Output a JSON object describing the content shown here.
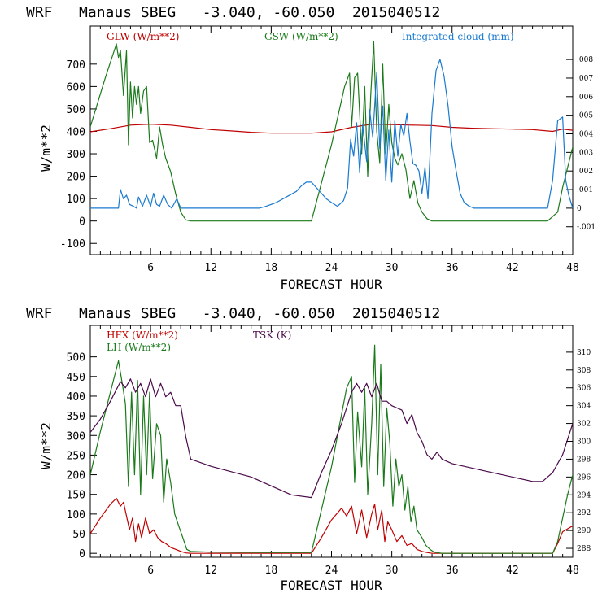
{
  "chart_data": [
    {
      "type": "line",
      "title": "WRF   Manaus SBEG   -3.040, -60.050  2015040512",
      "xlabel": "FORECAST HOUR",
      "ylabel": "W/m**2",
      "xlim": [
        0,
        48
      ],
      "ylim": [
        -150,
        870
      ],
      "y2lim": [
        -0.0025,
        0.0098
      ],
      "xticks": [
        "6",
        "12",
        "18",
        "24",
        "30",
        "36",
        "42",
        "48"
      ],
      "yticks": [
        "700",
        "600",
        "500",
        "400",
        "300",
        "200",
        "100",
        "0",
        "-100"
      ],
      "y2ticks": [
        ".008",
        ".007",
        ".006",
        ".005",
        ".004",
        ".003",
        ".002",
        ".001",
        "0",
        "-.001"
      ],
      "series": [
        {
          "name": "GLW (W/m**2)",
          "color": "#c00000",
          "axis": "left",
          "x": [
            0,
            2,
            4,
            6,
            8,
            10,
            12,
            14,
            16,
            18,
            20,
            22,
            24,
            26,
            28,
            30,
            32,
            34,
            36,
            38,
            40,
            42,
            44,
            46,
            47,
            48
          ],
          "y": [
            398,
            412,
            428,
            432,
            428,
            418,
            408,
            402,
            396,
            392,
            392,
            392,
            398,
            418,
            432,
            430,
            428,
            426,
            418,
            414,
            412,
            410,
            408,
            400,
            410,
            405
          ]
        },
        {
          "name": "GSW (W/m**2)",
          "color": "#1a7a1a",
          "axis": "left",
          "x": [
            0,
            1.5,
            2.6,
            2.8,
            3,
            3.3,
            3.6,
            3.8,
            4,
            4.2,
            4.4,
            4.6,
            4.8,
            5,
            5.3,
            5.6,
            5.9,
            6.2,
            6.6,
            6.9,
            7.2,
            7.5,
            8,
            8.5,
            9,
            9.5,
            10,
            22,
            24,
            25.3,
            25.8,
            26,
            26.3,
            26.6,
            27,
            27.3,
            27.6,
            27.9,
            28.2,
            28.5,
            28.8,
            29.1,
            29.4,
            29.7,
            30,
            30.3,
            30.6,
            31,
            31.4,
            31.8,
            32.2,
            32.6,
            33,
            33.5,
            34,
            45.5,
            46.5,
            47,
            48
          ],
          "y": [
            420,
            640,
            790,
            730,
            760,
            560,
            760,
            340,
            620,
            460,
            600,
            520,
            600,
            480,
            580,
            600,
            350,
            360,
            280,
            420,
            340,
            280,
            220,
            120,
            40,
            5,
            0,
            0,
            340,
            600,
            660,
            420,
            640,
            660,
            300,
            600,
            200,
            560,
            800,
            400,
            260,
            700,
            300,
            520,
            350,
            280,
            250,
            300,
            230,
            100,
            180,
            80,
            40,
            10,
            0,
            0,
            40,
            150,
            330
          ]
        },
        {
          "name": "Integrated cloud (mm)",
          "color": "#1a7ad0",
          "axis": "right",
          "x": [
            0,
            2.8,
            3,
            3.3,
            3.6,
            3.9,
            4.3,
            4.6,
            4.8,
            5.2,
            5.6,
            6,
            6.3,
            6.6,
            6.9,
            7.3,
            7.7,
            8.1,
            8.6,
            9,
            10,
            16.8,
            17.5,
            18.5,
            19.5,
            20.5,
            21,
            21.5,
            22,
            22.5,
            23,
            23.5,
            24,
            24.6,
            25.2,
            25.6,
            25.9,
            26.2,
            26.5,
            26.8,
            27.1,
            27.5,
            27.8,
            28.1,
            28.5,
            28.8,
            29.1,
            29.4,
            29.7,
            30,
            30.3,
            30.6,
            30.9,
            31.2,
            31.5,
            31.8,
            32.1,
            32.4,
            32.7,
            33,
            33.3,
            33.6,
            34,
            34.4,
            34.8,
            35.2,
            35.6,
            36,
            36.4,
            36.8,
            37.2,
            37.7,
            38.2,
            45.5,
            46,
            46.5,
            47,
            47.3,
            47.6,
            48
          ],
          "y": [
            0,
            0,
            0.001,
            0.0005,
            0.0007,
            0.0002,
            0.0001,
            0,
            0.0006,
            0.0001,
            0.0007,
            0.0001,
            0.0008,
            0.0002,
            0.0001,
            0.0007,
            0.0002,
            0,
            0.0005,
            0,
            0,
            0,
            0.0001,
            0.0003,
            0.0006,
            0.0009,
            0.0012,
            0.0014,
            0.0014,
            0.0011,
            0.0008,
            0.0005,
            0.0003,
            0.0001,
            0.0004,
            0.0011,
            0.0037,
            0.0028,
            0.0046,
            0.0019,
            0.0045,
            0.0025,
            0.0053,
            0.0038,
            0.0073,
            0.0032,
            0.0055,
            0.0015,
            0.0042,
            0.0014,
            0.0047,
            0.0028,
            0.0045,
            0.0039,
            0.0051,
            0.0036,
            0.0024,
            0.0023,
            0.002,
            0.0008,
            0.0022,
            0.0005,
            0.0051,
            0.0074,
            0.008,
            0.0071,
            0.0055,
            0.0033,
            0.002,
            0.0008,
            0.0003,
            0.0001,
            0,
            0,
            0.0015,
            0.0047,
            0.0049,
            0.0015,
            0.0007,
            0
          ]
        }
      ]
    },
    {
      "type": "line",
      "title": "WRF   Manaus SBEG   -3.040, -60.050  2015040512",
      "xlabel": "FORECAST HOUR",
      "ylabel": "W/m**2",
      "xlim": [
        0,
        48
      ],
      "ylim": [
        -10,
        580
      ],
      "y2lim": [
        287,
        313
      ],
      "xticks": [
        "6",
        "12",
        "18",
        "24",
        "30",
        "36",
        "42",
        "48"
      ],
      "yticks": [
        "500",
        "450",
        "400",
        "350",
        "300",
        "250",
        "200",
        "150",
        "100",
        "50",
        "0"
      ],
      "y2ticks": [
        "310",
        "308",
        "306",
        "304",
        "302",
        "300",
        "298",
        "296",
        "294",
        "292",
        "290",
        "288"
      ],
      "series": [
        {
          "name": "HFX (W/m**2)",
          "color": "#c00000",
          "axis": "left",
          "x": [
            0,
            1,
            2,
            2.6,
            3,
            3.3,
            3.6,
            3.9,
            4.2,
            4.5,
            4.8,
            5.1,
            5.5,
            5.9,
            6.3,
            6.7,
            7.1,
            7.5,
            8,
            8.5,
            9,
            9.5,
            10,
            22,
            23,
            24,
            25,
            25.5,
            26,
            26.5,
            27,
            27.5,
            28,
            28.3,
            28.6,
            29,
            29.3,
            29.6,
            30,
            30.5,
            31,
            31.5,
            32,
            32.5,
            33,
            33.5,
            34,
            46,
            46.5,
            47,
            48
          ],
          "y": [
            50,
            90,
            125,
            140,
            120,
            130,
            95,
            60,
            90,
            30,
            75,
            40,
            90,
            50,
            60,
            40,
            30,
            25,
            15,
            10,
            5,
            1,
            0,
            0,
            40,
            85,
            115,
            95,
            120,
            50,
            110,
            40,
            100,
            125,
            60,
            110,
            30,
            80,
            60,
            30,
            45,
            20,
            25,
            10,
            5,
            2,
            0,
            0,
            25,
            55,
            70
          ]
        },
        {
          "name": "LH (W/m**2)",
          "color": "#1a7a1a",
          "axis": "left",
          "x": [
            0,
            1,
            2,
            2.8,
            3.2,
            3.5,
            3.8,
            4.1,
            4.4,
            4.7,
            5,
            5.3,
            5.6,
            5.9,
            6.2,
            6.6,
            7,
            7.3,
            7.6,
            8,
            8.4,
            8.8,
            9.2,
            9.6,
            10,
            12,
            18,
            22,
            24,
            25.5,
            26,
            26.3,
            26.6,
            27,
            27.3,
            27.6,
            28,
            28.3,
            28.6,
            28.9,
            29.2,
            29.5,
            29.8,
            30.1,
            30.4,
            30.7,
            31,
            31.3,
            31.6,
            31.9,
            32.2,
            32.5,
            33,
            33.4,
            33.8,
            34.2,
            35,
            46,
            46.5,
            47,
            47.5,
            48
          ],
          "y": [
            200,
            310,
            410,
            490,
            430,
            380,
            170,
            410,
            200,
            440,
            150,
            400,
            200,
            410,
            190,
            330,
            300,
            130,
            240,
            180,
            100,
            70,
            40,
            10,
            5,
            3,
            2,
            2,
            220,
            420,
            450,
            180,
            360,
            220,
            420,
            150,
            330,
            530,
            200,
            480,
            170,
            370,
            280,
            120,
            240,
            170,
            200,
            110,
            170,
            80,
            120,
            60,
            40,
            20,
            10,
            3,
            0,
            0,
            30,
            90,
            150,
            200
          ]
        },
        {
          "name": "TSK (K)",
          "color": "#4a0a4a",
          "axis": "right",
          "x": [
            0,
            1,
            2,
            3,
            3.5,
            4,
            4.5,
            5,
            5.5,
            6,
            6.5,
            7,
            7.5,
            8,
            8.5,
            9,
            9.5,
            10,
            12,
            16,
            20,
            22,
            23,
            24,
            25,
            26,
            26.5,
            27,
            27.5,
            28,
            28.5,
            29,
            29.5,
            30,
            31,
            31.5,
            32,
            32.5,
            33,
            33.5,
            34,
            34.5,
            35,
            36,
            40,
            44,
            45,
            46,
            47,
            48
          ],
          "y": [
            301,
            302.5,
            304.5,
            306.7,
            306,
            307,
            305.5,
            306.5,
            305,
            307,
            305,
            306.5,
            305,
            305.5,
            304,
            304,
            300.5,
            298,
            297.2,
            296,
            294,
            293.7,
            296.5,
            299,
            302,
            305.5,
            306.5,
            305.5,
            306.5,
            305,
            306.5,
            304.5,
            304.5,
            304,
            303.5,
            302,
            303,
            301,
            300,
            298.5,
            298,
            298.8,
            298,
            297.5,
            296.5,
            295.5,
            295.5,
            296.5,
            298.5,
            302
          ]
        }
      ]
    }
  ]
}
